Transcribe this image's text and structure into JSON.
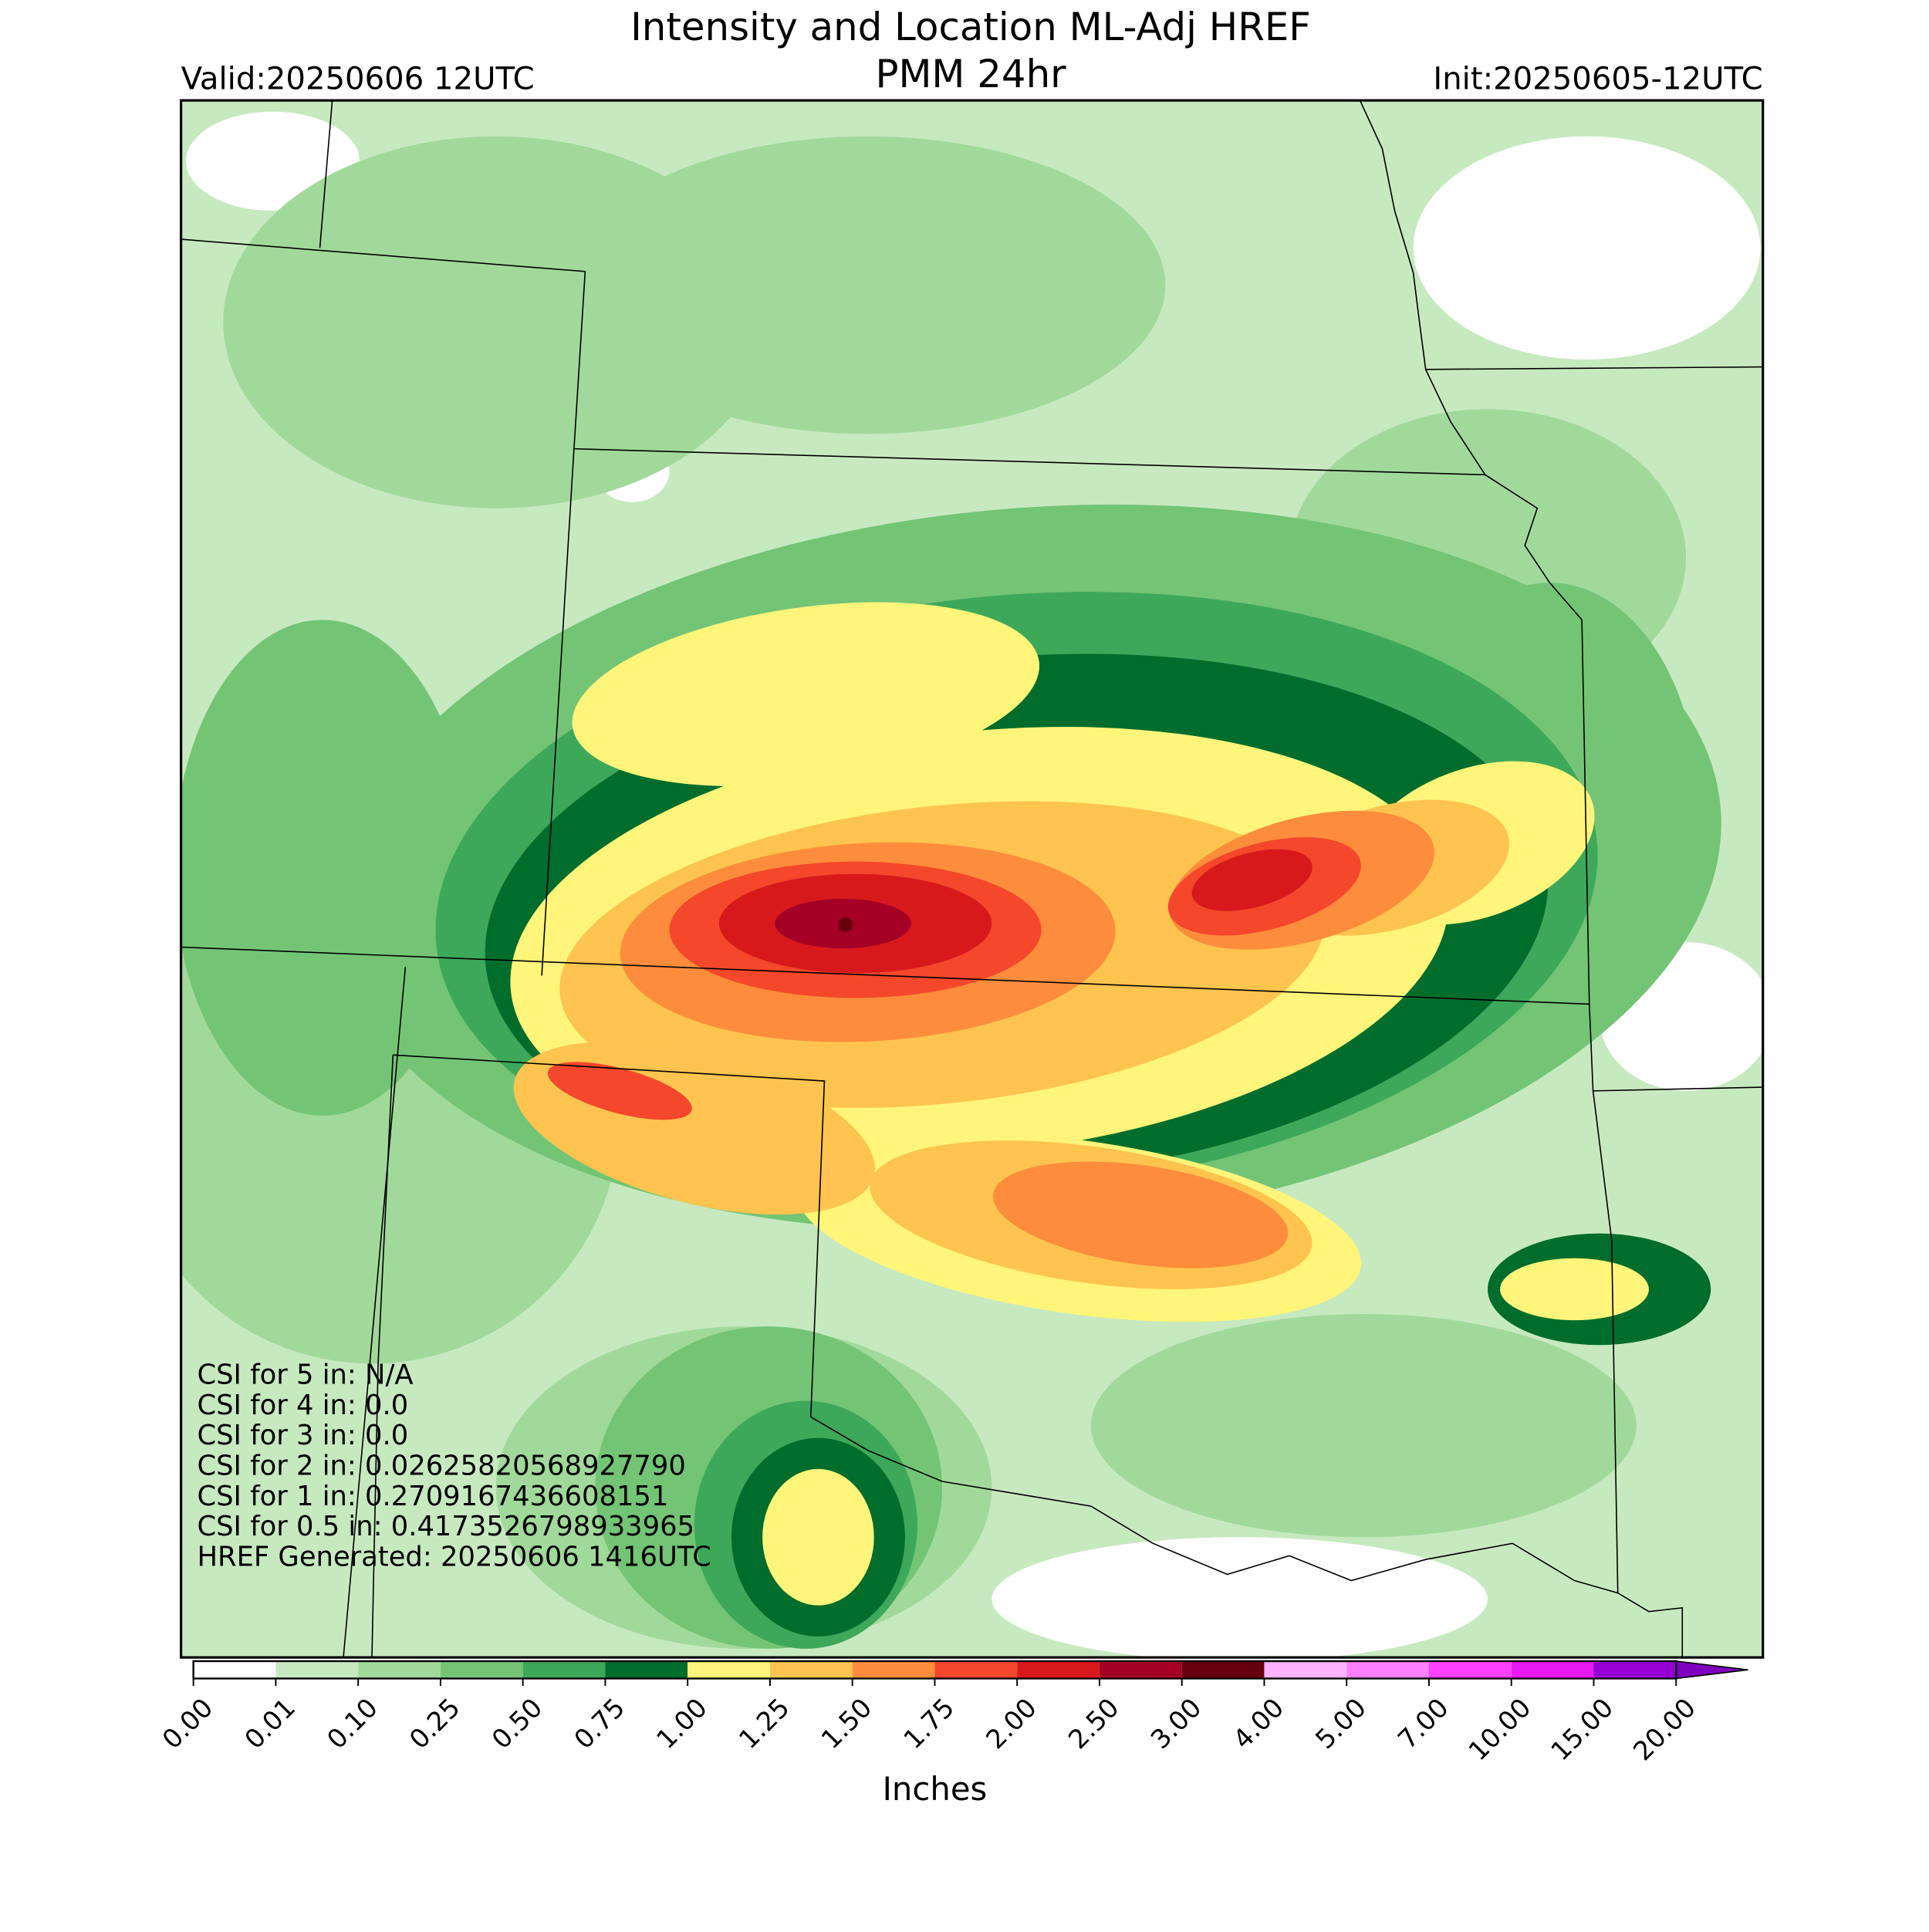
{
  "header": {
    "title": "Intensity and Location ML-Adj HREF",
    "subtitle": "PMM 24hr",
    "valid": "Valid:20250606 12UTC",
    "init": "Init:20250605-12UTC"
  },
  "colorbar": {
    "label": "Inches",
    "ticks": [
      {
        "value": 0,
        "label": "0.00"
      },
      {
        "value": 0.01,
        "label": "0.01"
      },
      {
        "value": 0.1,
        "label": "0.10"
      },
      {
        "value": 0.25,
        "label": "0.25"
      },
      {
        "value": 0.5,
        "label": "0.50"
      },
      {
        "value": 0.75,
        "label": "0.75"
      },
      {
        "value": 1,
        "label": "1.00"
      },
      {
        "value": 1.25,
        "label": "1.25"
      },
      {
        "value": 1.5,
        "label": "1.50"
      },
      {
        "value": 1.75,
        "label": "1.75"
      },
      {
        "value": 2,
        "label": "2.00"
      },
      {
        "value": 2.5,
        "label": "2.50"
      },
      {
        "value": 3,
        "label": "3.00"
      },
      {
        "value": 4,
        "label": "4.00"
      },
      {
        "value": 5,
        "label": "5.00"
      },
      {
        "value": 7,
        "label": "7.00"
      },
      {
        "value": 10,
        "label": "10.00"
      },
      {
        "value": 15,
        "label": "15.00"
      },
      {
        "value": 20,
        "label": "20.00"
      }
    ],
    "colors": [
      "#ffffff",
      "#c7e9c0",
      "#a1d99b",
      "#74c476",
      "#3da85a",
      "#006d2c",
      "#fff57a",
      "#fec44f",
      "#fd8d3c",
      "#f4472b",
      "#d7191c",
      "#a50026",
      "#67000d",
      "#ffb3ff",
      "#ff80ff",
      "#ff40ff",
      "#e619f0",
      "#9400d3"
    ],
    "extend_color": "#8000c0"
  },
  "annotations": [
    "CSI for 5 in: N/A",
    "CSI for 4 in: 0.0",
    "CSI for 3 in: 0.0",
    "CSI for 2 in: 0.02625820568927790",
    "CSI for 1 in: 0.2709167436608151",
    "CSI for 0.5 in: 0.4173526798933965",
    "HREF Generated: 20250606 1416UTC"
  ]
}
